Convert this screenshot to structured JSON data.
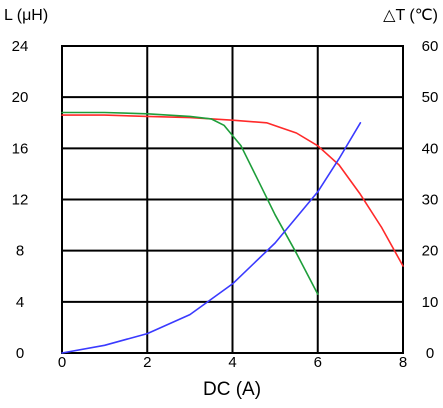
{
  "chart_data": {
    "type": "line",
    "left_axis_label": "L (μH)",
    "right_axis_label": "△T (℃)",
    "xlabel": "DC (A)",
    "xlim": [
      0,
      8
    ],
    "ylim_left": [
      0,
      24
    ],
    "ylim_right": [
      0,
      60
    ],
    "x_ticks": [
      "0",
      "2",
      "4",
      "6",
      "8"
    ],
    "y_ticks_left": [
      "0",
      "4",
      "8",
      "12",
      "16",
      "20",
      "24"
    ],
    "y_ticks_right": [
      "0",
      "10",
      "20",
      "30",
      "40",
      "50",
      "60"
    ],
    "grid": true,
    "series": [
      {
        "color": "#ff2a2a",
        "axis": "left",
        "points": [
          [
            0,
            18.6
          ],
          [
            1,
            18.6
          ],
          [
            2,
            18.5
          ],
          [
            3,
            18.4
          ],
          [
            4,
            18.2
          ],
          [
            4.8,
            18.0
          ],
          [
            5.5,
            17.2
          ],
          [
            6,
            16.2
          ],
          [
            6.5,
            14.7
          ],
          [
            7,
            12.4
          ],
          [
            7.5,
            9.8
          ],
          [
            8,
            6.8
          ]
        ]
      },
      {
        "color": "#1e9e3a",
        "axis": "left",
        "points": [
          [
            0,
            18.8
          ],
          [
            1,
            18.8
          ],
          [
            2,
            18.7
          ],
          [
            3,
            18.5
          ],
          [
            3.5,
            18.3
          ],
          [
            3.8,
            17.8
          ],
          [
            4.2,
            16.2
          ],
          [
            4.6,
            13.5
          ],
          [
            5,
            10.8
          ],
          [
            5.5,
            7.8
          ],
          [
            6,
            4.6
          ]
        ]
      },
      {
        "color": "#3a3aff",
        "axis": "right",
        "points": [
          [
            0,
            0
          ],
          [
            1,
            1.5
          ],
          [
            2,
            3.8
          ],
          [
            3,
            7.5
          ],
          [
            4,
            13.5
          ],
          [
            5,
            21.5
          ],
          [
            6,
            31.5
          ],
          [
            6.5,
            38
          ],
          [
            7,
            45
          ]
        ]
      }
    ]
  }
}
